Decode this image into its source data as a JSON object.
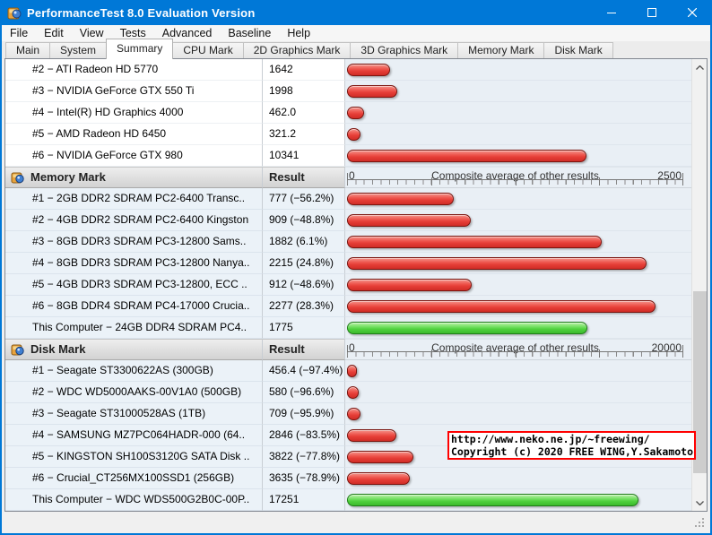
{
  "window": {
    "title": "PerformanceTest 8.0 Evaluation Version",
    "app_icon": "performancetest-icon",
    "controls": {
      "minimize": "minimize-icon",
      "maximize": "maximize-icon",
      "close": "close-icon"
    }
  },
  "colors": {
    "titlebar": "#0078d7",
    "bar_red": "#e63e37",
    "bar_green": "#50d13e",
    "overlay_border": "#ff0000",
    "bar_track_bg": "#e9eff5"
  },
  "menu": {
    "items": [
      "File",
      "Edit",
      "View",
      "Tests",
      "Advanced",
      "Baseline",
      "Help"
    ]
  },
  "tabs": {
    "active": "Summary",
    "items": [
      "Main",
      "System",
      "Summary",
      "CPU Mark",
      "2D Graphics Mark",
      "3D Graphics Mark",
      "Memory Mark",
      "Disk Mark"
    ]
  },
  "overlay": {
    "line1": "http://www.neko.ne.jp/~freewing/",
    "line2": "Copyright (c) 2020 FREE WING,Y.Sakamoto"
  },
  "chart_data": [
    {
      "type": "bar",
      "orientation": "horizontal",
      "title": "",
      "header_visible": false,
      "tinted": false,
      "axis": null,
      "rows": [
        {
          "label": "#2 − ATI Radeon HD 5770",
          "result": "1642",
          "value": 1642,
          "bar_fraction": 0.122,
          "bar_color": "red"
        },
        {
          "label": "#3 − NVIDIA GeForce GTX 550 Ti",
          "result": "1998",
          "value": 1998,
          "bar_fraction": 0.144,
          "bar_color": "red"
        },
        {
          "label": "#4 − Intel(R) HD Graphics 4000",
          "result": "462.0",
          "value": 462.0,
          "bar_fraction": 0.044,
          "bar_color": "red"
        },
        {
          "label": "#5 − AMD Radeon HD 6450",
          "result": "321.2",
          "value": 321.2,
          "bar_fraction": 0.035,
          "bar_color": "red"
        },
        {
          "label": "#6 − NVIDIA GeForce GTX 980",
          "result": "10341",
          "value": 10341,
          "bar_fraction": 0.706,
          "bar_color": "red"
        }
      ]
    },
    {
      "type": "bar",
      "orientation": "horizontal",
      "title": "Memory Mark",
      "header_visible": true,
      "tinted": true,
      "result_header": "Result",
      "axis": {
        "min": 0,
        "max": 2500,
        "min_label": "0",
        "max_label": "2500",
        "caption": "Composite average of other results"
      },
      "rows": [
        {
          "label": "#1 − 2GB DDR2 SDRAM PC2-6400 Transc..",
          "result": "777 (−56.2%)",
          "value": 777,
          "bar_color": "red"
        },
        {
          "label": "#2 − 4GB DDR2 SDRAM PC2-6400 Kingston",
          "result": "909 (−48.8%)",
          "value": 909,
          "bar_color": "red"
        },
        {
          "label": "#3 − 8GB DDR3 SDRAM PC3-12800 Sams..",
          "result": "1882 (6.1%)",
          "value": 1882,
          "bar_color": "red"
        },
        {
          "label": "#4 − 8GB DDR3 SDRAM PC3-12800 Nanya..",
          "result": "2215 (24.8%)",
          "value": 2215,
          "bar_color": "red"
        },
        {
          "label": "#5 − 4GB DDR3 SDRAM PC3-12800, ECC ..",
          "result": "912 (−48.6%)",
          "value": 912,
          "bar_color": "red"
        },
        {
          "label": "#6 − 8GB DDR4 SDRAM PC4-17000 Crucia..",
          "result": "2277 (28.3%)",
          "value": 2277,
          "bar_color": "red"
        },
        {
          "label": "This Computer − 24GB DDR4 SDRAM PC4..",
          "result": "1775",
          "value": 1775,
          "bar_color": "green"
        }
      ]
    },
    {
      "type": "bar",
      "orientation": "horizontal",
      "title": "Disk Mark",
      "header_visible": true,
      "tinted": true,
      "result_header": "Result",
      "axis": {
        "min": 0,
        "max": 20000,
        "min_label": "0",
        "max_label": "20000",
        "caption": "Composite average of other results"
      },
      "rows": [
        {
          "label": "#1 − Seagate ST3300622AS (300GB)",
          "result": "456.4 (−97.4%)",
          "value": 456.4,
          "bar_color": "red"
        },
        {
          "label": "#2 − WDC WD5000AAKS-00V1A0 (500GB)",
          "result": "580 (−96.6%)",
          "value": 580,
          "bar_color": "red"
        },
        {
          "label": "#3 − Seagate ST31000528AS (1TB)",
          "result": "709 (−95.9%)",
          "value": 709,
          "bar_color": "red"
        },
        {
          "label": "#4 − SAMSUNG MZ7PC064HADR-000 (64..",
          "result": "2846 (−83.5%)",
          "value": 2846,
          "bar_color": "red"
        },
        {
          "label": "#5 − KINGSTON SH100S3120G SATA Disk ..",
          "result": "3822 (−77.8%)",
          "value": 3822,
          "bar_color": "red"
        },
        {
          "label": "#6 − Crucial_CT256MX100SSD1 (256GB)",
          "result": "3635 (−78.9%)",
          "value": 3635,
          "bar_color": "red"
        },
        {
          "label": "This Computer − WDC WDS500G2B0C-00P..",
          "result": "17251",
          "value": 17251,
          "bar_color": "green"
        }
      ]
    }
  ]
}
